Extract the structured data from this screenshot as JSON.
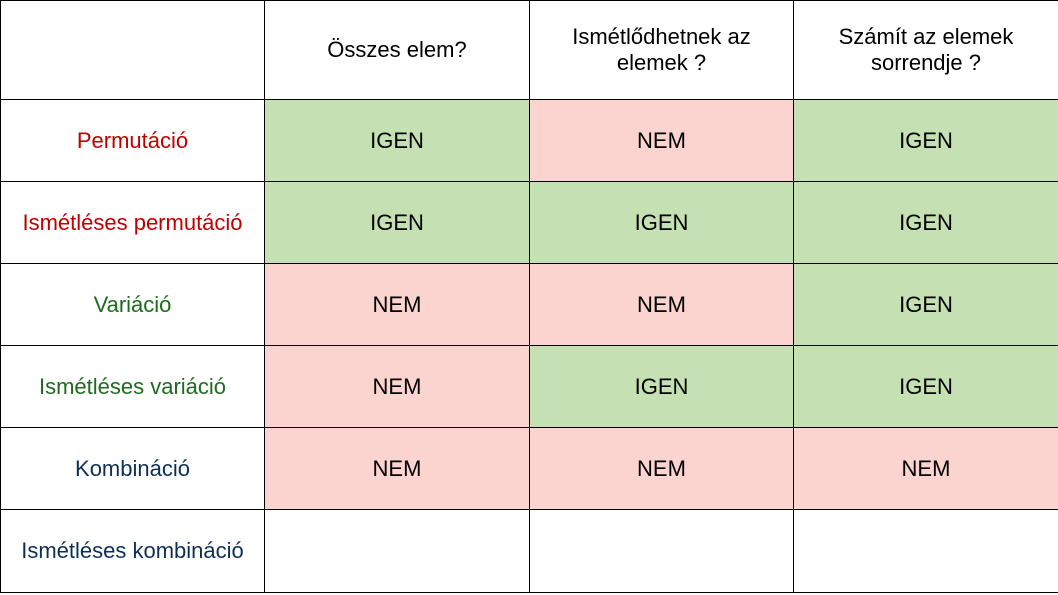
{
  "colors": {
    "yes_bg": "#c5e0b3",
    "no_bg": "#fbd4d0",
    "red": "#c00000",
    "green": "#1e6b1e",
    "navy": "#0e2f55"
  },
  "headers": [
    "",
    "Összes elem?",
    "Ismétlődhetnek az elemek ?",
    "Számít az elemek sorrendje ?"
  ],
  "rows": [
    {
      "label": "Permutáció",
      "color": "#c00000",
      "values": [
        "IGEN",
        "NEM",
        "IGEN"
      ]
    },
    {
      "label": "Ismétléses permutáció",
      "color": "#c00000",
      "values": [
        "IGEN",
        "IGEN",
        "IGEN"
      ]
    },
    {
      "label": "Variáció",
      "color": "#1e6b1e",
      "values": [
        "NEM",
        "NEM",
        "IGEN"
      ]
    },
    {
      "label": "Ismétléses variáció",
      "color": "#1e6b1e",
      "values": [
        "NEM",
        "IGEN",
        "IGEN"
      ]
    },
    {
      "label": "Kombináció",
      "color": "#0e2f55",
      "values": [
        "NEM",
        "NEM",
        "NEM"
      ]
    },
    {
      "label": "Ismétléses kombináció",
      "color": "#0e2f55",
      "values": [
        "",
        "",
        ""
      ]
    }
  ]
}
